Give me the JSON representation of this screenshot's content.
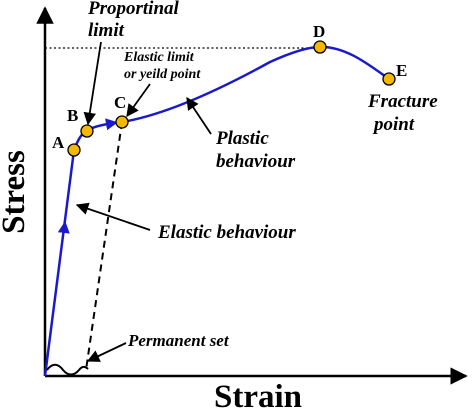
{
  "axes": {
    "x_label": "Strain",
    "y_label": "Stress"
  },
  "points": [
    {
      "id": "A",
      "label": "A"
    },
    {
      "id": "B",
      "label": "B"
    },
    {
      "id": "C",
      "label": "C"
    },
    {
      "id": "D",
      "label": "D"
    },
    {
      "id": "E",
      "label": "E"
    }
  ],
  "annotations": {
    "proportional_limit": [
      "Proportinal",
      "limit"
    ],
    "elastic_limit": [
      "Elastic limit",
      "or yeild point"
    ],
    "plastic_behaviour": [
      "Plastic",
      "behaviour"
    ],
    "fracture_point": [
      "Fracture",
      "point"
    ],
    "elastic_behaviour": "Elastic behaviour",
    "permanent_set": "Permanent set"
  },
  "colors": {
    "curve": "#1a1acc",
    "point_fill": "#f5b800",
    "ink": "#000000"
  }
}
